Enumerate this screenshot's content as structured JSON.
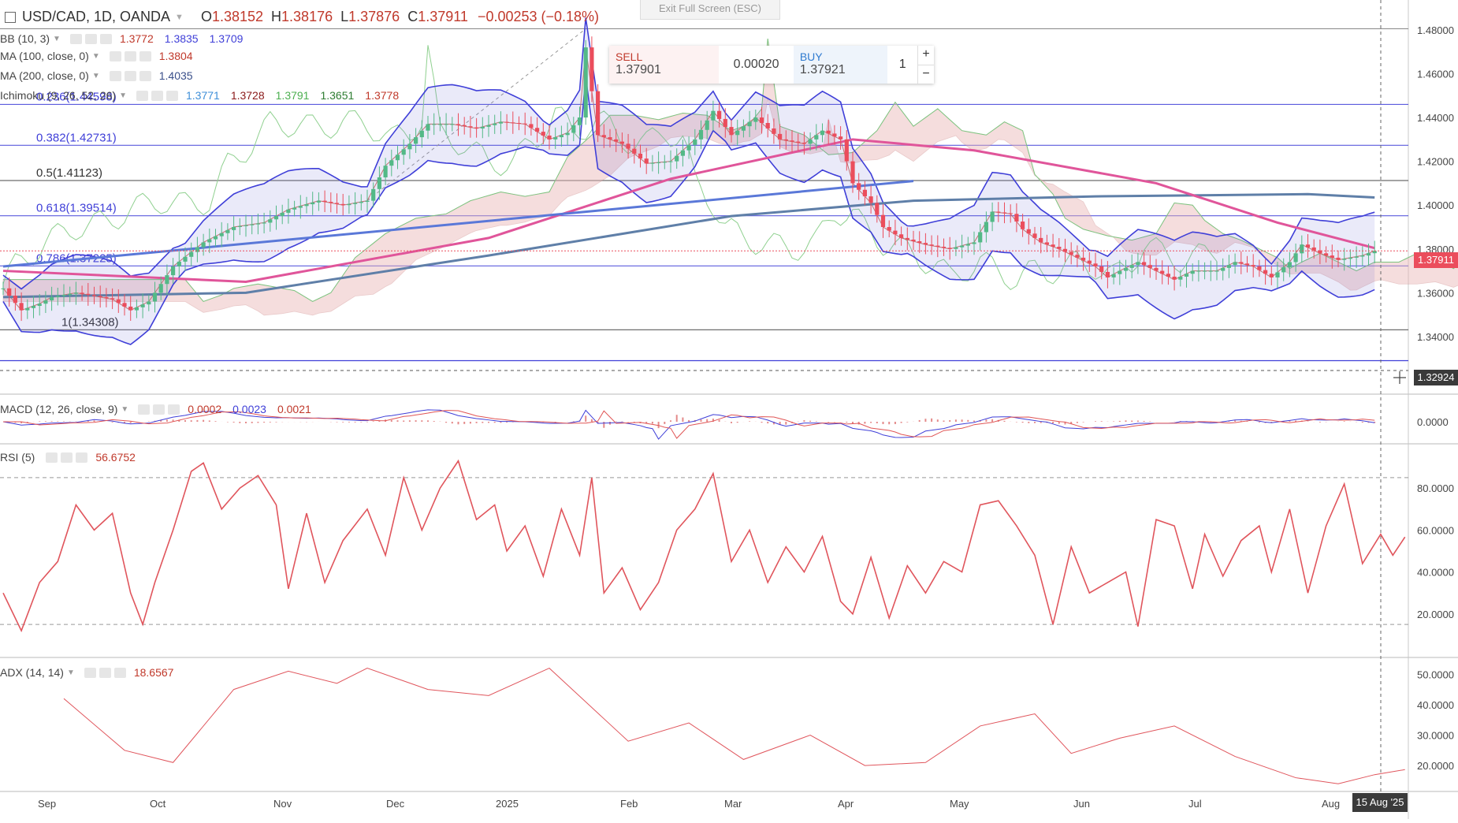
{
  "header": {
    "symbol": "USD/CAD, 1D, OANDA",
    "open_label": "O",
    "open": "1.38152",
    "high_label": "H",
    "high": "1.38176",
    "low_label": "L",
    "low": "1.37876",
    "close_label": "C",
    "close": "1.37911",
    "change": "−0.00253 (−0.18%)"
  },
  "exit_fullscreen": "Exit Full Screen (ESC)",
  "trade_panel": {
    "sell_label": "SELL",
    "sell_price": "1.37901",
    "spread": "0.00020",
    "buy_label": "BUY",
    "buy_price": "1.37921",
    "quantity": "1",
    "plus": "+",
    "minus": "−"
  },
  "legends": {
    "bb": {
      "name": "BB (10, 3)",
      "v1": "1.3772",
      "v2": "1.3835",
      "v3": "1.3709"
    },
    "ma100": {
      "name": "MA (100, close, 0)",
      "v1": "1.3804"
    },
    "ma200": {
      "name": "MA (200, close, 0)",
      "v1": "1.4035"
    },
    "ichimoku": {
      "name": "Ichimoku (9, 26, 52, 26)",
      "v1": "1.3771",
      "v2": "1.3728",
      "v3": "1.3791",
      "v4": "1.3651",
      "v5": "1.3778"
    },
    "macd": {
      "name": "MACD (12, 26, close, 9)",
      "v1": "0.0002",
      "v2": "0.0023",
      "v3": "0.0021"
    },
    "rsi": {
      "name": "RSI (5)",
      "v1": "56.6752"
    },
    "adx": {
      "name": "ADX (14, 14)",
      "v1": "18.6567"
    }
  },
  "price_tags": {
    "last": "1.37911",
    "cursor": "1.32924"
  },
  "date_tag": "15 Aug '25",
  "colors": {
    "up": "#53b987",
    "down": "#eb4d5c",
    "bb": "#3f3fd8",
    "ma100": "#e0559a",
    "ma200": "#5f7fa8",
    "rsi": "#e0555c",
    "adx": "#e0555c",
    "fib": "#3f3fd8",
    "text": "#4a4a4a"
  },
  "chart_data": [
    {
      "type": "candlestick",
      "title": "USD/CAD, 1D, OANDA",
      "x_ticks": [
        "Sep",
        "Oct",
        "Nov",
        "Dec",
        "2025",
        "Feb",
        "Mar",
        "Apr",
        "May",
        "Jun",
        "Jul",
        "Aug"
      ],
      "y_ticks": [
        "1.48000",
        "1.46000",
        "1.44000",
        "1.42000",
        "1.40000",
        "1.38000",
        "1.36000",
        "1.34000"
      ],
      "ylim": [
        1.3245,
        1.485
      ],
      "close_path": [
        [
          0,
          1.362
        ],
        [
          3,
          1.352
        ],
        [
          6,
          1.355
        ],
        [
          8,
          1.358
        ],
        [
          12,
          1.36
        ],
        [
          18,
          1.357
        ],
        [
          21,
          1.352
        ],
        [
          24,
          1.356
        ],
        [
          28,
          1.372
        ],
        [
          33,
          1.383
        ],
        [
          38,
          1.39
        ],
        [
          43,
          1.392
        ],
        [
          47,
          1.398
        ],
        [
          52,
          1.402
        ],
        [
          56,
          1.4
        ],
        [
          60,
          1.402
        ],
        [
          63,
          1.418
        ],
        [
          67,
          1.428
        ],
        [
          70,
          1.437
        ],
        [
          74,
          1.437
        ],
        [
          78,
          1.435
        ],
        [
          82,
          1.438
        ],
        [
          86,
          1.437
        ],
        [
          90,
          1.43
        ],
        [
          93,
          1.433
        ],
        [
          95,
          1.44
        ],
        [
          96,
          1.472
        ],
        [
          98,
          1.432
        ],
        [
          102,
          1.428
        ],
        [
          106,
          1.419
        ],
        [
          110,
          1.42
        ],
        [
          114,
          1.43
        ],
        [
          117,
          1.443
        ],
        [
          120,
          1.432
        ],
        [
          124,
          1.44
        ],
        [
          128,
          1.43
        ],
        [
          132,
          1.428
        ],
        [
          135,
          1.434
        ],
        [
          138,
          1.43
        ],
        [
          140,
          1.41
        ],
        [
          143,
          1.401
        ],
        [
          145,
          1.39
        ],
        [
          148,
          1.385
        ],
        [
          152,
          1.382
        ],
        [
          156,
          1.38
        ],
        [
          160,
          1.383
        ],
        [
          163,
          1.397
        ],
        [
          166,
          1.396
        ],
        [
          168,
          1.389
        ],
        [
          171,
          1.383
        ],
        [
          174,
          1.38
        ],
        [
          177,
          1.376
        ],
        [
          180,
          1.372
        ],
        [
          182,
          1.367
        ],
        [
          184,
          1.37
        ],
        [
          187,
          1.374
        ],
        [
          190,
          1.37
        ],
        [
          193,
          1.366
        ],
        [
          196,
          1.37
        ],
        [
          200,
          1.37
        ],
        [
          203,
          1.374
        ],
        [
          206,
          1.372
        ],
        [
          209,
          1.367
        ],
        [
          212,
          1.374
        ],
        [
          214,
          1.382
        ],
        [
          217,
          1.378
        ],
        [
          220,
          1.375
        ],
        [
          224,
          1.377
        ],
        [
          226,
          1.3791
        ]
      ],
      "ma100": [
        [
          0,
          1.37
        ],
        [
          40,
          1.365
        ],
        [
          80,
          1.385
        ],
        [
          110,
          1.412
        ],
        [
          140,
          1.43
        ],
        [
          160,
          1.425
        ],
        [
          190,
          1.41
        ],
        [
          210,
          1.392
        ],
        [
          226,
          1.3804
        ]
      ],
      "ma200": [
        [
          0,
          1.358
        ],
        [
          40,
          1.36
        ],
        [
          80,
          1.377
        ],
        [
          120,
          1.395
        ],
        [
          150,
          1.402
        ],
        [
          180,
          1.404
        ],
        [
          215,
          1.405
        ],
        [
          226,
          1.4035
        ]
      ],
      "trendline": [
        [
          0,
          1.372
        ],
        [
          150,
          1.411
        ]
      ],
      "fib_levels": [
        {
          "label": "0.236(1.44598)",
          "value": 1.44598
        },
        {
          "label": "0.382(1.42731)",
          "value": 1.42731
        },
        {
          "label": "0.5(1.41123)",
          "value": 1.41123
        },
        {
          "label": "0.618(1.39514)",
          "value": 1.39514
        },
        {
          "label": "0.786(1.37225)",
          "value": 1.37225
        },
        {
          "label": "1(1.34308)",
          "value": 1.34308
        }
      ],
      "bb_last": {
        "basis": 1.3772,
        "upper": 1.3835,
        "lower": 1.3709
      }
    },
    {
      "type": "line",
      "name": "MACD (12, 26, close, 9)",
      "y_ticks": [
        "0.0000"
      ],
      "values": {
        "macd": 0.0002,
        "signal": 0.0023,
        "histogram": 0.0021
      }
    },
    {
      "type": "line",
      "name": "RSI (5)",
      "ylim": [
        0,
        100
      ],
      "y_ticks": [
        "80.0000",
        "60.0000",
        "40.0000",
        "20.0000"
      ],
      "bands": [
        85,
        15
      ],
      "path": [
        [
          0,
          30
        ],
        [
          3,
          12
        ],
        [
          6,
          35
        ],
        [
          9,
          45
        ],
        [
          12,
          72
        ],
        [
          15,
          60
        ],
        [
          18,
          68
        ],
        [
          21,
          30
        ],
        [
          23,
          15
        ],
        [
          25,
          35
        ],
        [
          28,
          60
        ],
        [
          31,
          88
        ],
        [
          33,
          92
        ],
        [
          36,
          70
        ],
        [
          39,
          80
        ],
        [
          42,
          86
        ],
        [
          45,
          72
        ],
        [
          47,
          32
        ],
        [
          50,
          68
        ],
        [
          53,
          35
        ],
        [
          56,
          55
        ],
        [
          60,
          70
        ],
        [
          63,
          48
        ],
        [
          66,
          85
        ],
        [
          69,
          60
        ],
        [
          72,
          80
        ],
        [
          75,
          93
        ],
        [
          78,
          65
        ],
        [
          81,
          72
        ],
        [
          83,
          50
        ],
        [
          86,
          62
        ],
        [
          89,
          38
        ],
        [
          92,
          70
        ],
        [
          95,
          48
        ],
        [
          97,
          85
        ],
        [
          99,
          30
        ],
        [
          102,
          42
        ],
        [
          105,
          22
        ],
        [
          108,
          35
        ],
        [
          111,
          60
        ],
        [
          114,
          70
        ],
        [
          117,
          87
        ],
        [
          120,
          45
        ],
        [
          123,
          60
        ],
        [
          126,
          35
        ],
        [
          129,
          52
        ],
        [
          132,
          40
        ],
        [
          135,
          57
        ],
        [
          138,
          26
        ],
        [
          140,
          20
        ],
        [
          143,
          47
        ],
        [
          146,
          18
        ],
        [
          149,
          43
        ],
        [
          152,
          30
        ],
        [
          155,
          45
        ],
        [
          158,
          40
        ],
        [
          161,
          72
        ],
        [
          164,
          74
        ],
        [
          167,
          62
        ],
        [
          170,
          48
        ],
        [
          173,
          15
        ],
        [
          176,
          52
        ],
        [
          179,
          30
        ],
        [
          182,
          35
        ],
        [
          185,
          40
        ],
        [
          187,
          14
        ],
        [
          190,
          65
        ],
        [
          193,
          62
        ],
        [
          196,
          32
        ],
        [
          198,
          58
        ],
        [
          201,
          38
        ],
        [
          204,
          55
        ],
        [
          207,
          62
        ],
        [
          209,
          40
        ],
        [
          212,
          70
        ],
        [
          215,
          30
        ],
        [
          218,
          62
        ],
        [
          221,
          82
        ],
        [
          224,
          44
        ],
        [
          227,
          58
        ],
        [
          229,
          48
        ],
        [
          231,
          56.6752
        ]
      ]
    },
    {
      "type": "line",
      "name": "ADX (14, 14)",
      "ylim": [
        12,
        55
      ],
      "y_ticks": [
        "50.0000",
        "40.0000",
        "30.0000",
        "20.0000"
      ],
      "path": [
        [
          10,
          42
        ],
        [
          20,
          25
        ],
        [
          28,
          21
        ],
        [
          38,
          45
        ],
        [
          47,
          51
        ],
        [
          55,
          47
        ],
        [
          60,
          52
        ],
        [
          70,
          45
        ],
        [
          80,
          43
        ],
        [
          90,
          52
        ],
        [
          103,
          28
        ],
        [
          113,
          34
        ],
        [
          122,
          22
        ],
        [
          133,
          30
        ],
        [
          142,
          20
        ],
        [
          152,
          21
        ],
        [
          161,
          33
        ],
        [
          170,
          37
        ],
        [
          176,
          24
        ],
        [
          184,
          29
        ],
        [
          193,
          33
        ],
        [
          203,
          23
        ],
        [
          213,
          16
        ],
        [
          220,
          14
        ],
        [
          226,
          17
        ],
        [
          231,
          18.6567
        ]
      ]
    }
  ]
}
